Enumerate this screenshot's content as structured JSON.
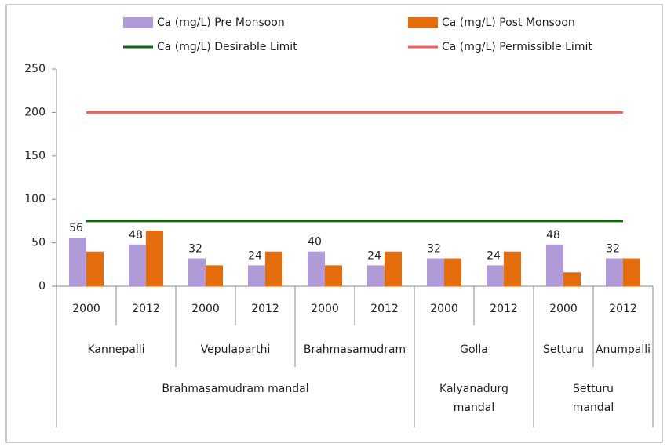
{
  "chart_data": {
    "type": "bar",
    "categories": [
      "2000",
      "2012",
      "2000",
      "2012",
      "2000",
      "2012",
      "2000",
      "2012",
      "2000",
      "2012"
    ],
    "category_groups": [
      [
        {
          "label": "Kannepalli",
          "count": 2
        },
        {
          "label": "Vepulaparthi",
          "count": 2
        },
        {
          "label": "Brahmasamudram",
          "count": 2
        },
        {
          "label": "Golla",
          "count": 2
        },
        {
          "label": "Setturu",
          "count": 1
        },
        {
          "label": "Anumpalli",
          "count": 1
        }
      ],
      [
        {
          "label": "Brahmasamudram mandal",
          "count": 6
        },
        {
          "label": "Kalyanadurg mandal",
          "count": 2
        },
        {
          "label": "Setturu mandal",
          "count": 2
        }
      ]
    ],
    "series": [
      {
        "name": "Ca (mg/L) Pre Monsoon",
        "type": "bar",
        "color": "#b09ad8",
        "values": [
          56,
          48,
          32,
          24,
          40,
          24,
          32,
          24,
          48,
          32
        ],
        "data_labels": true
      },
      {
        "name": "Ca (mg/L) Post Monsoon",
        "type": "bar",
        "color": "#e46c0a",
        "values": [
          40,
          64,
          24,
          40,
          24,
          40,
          32,
          40,
          16,
          32
        ]
      },
      {
        "name": "Ca (mg/L) Desirable Limit",
        "type": "line",
        "color": "#0b6a0b",
        "values": [
          75,
          75,
          75,
          75,
          75,
          75,
          75,
          75,
          75,
          75
        ]
      },
      {
        "name": "Ca (mg/L) Permissible Limit",
        "type": "line",
        "color": "#ff5a5a",
        "values": [
          200,
          200,
          200,
          200,
          200,
          200,
          200,
          200,
          200,
          200
        ]
      }
    ],
    "ylim": [
      0,
      250
    ],
    "yticks": [
      0,
      50,
      100,
      150,
      200,
      250
    ],
    "grid": false,
    "legend": "top"
  }
}
